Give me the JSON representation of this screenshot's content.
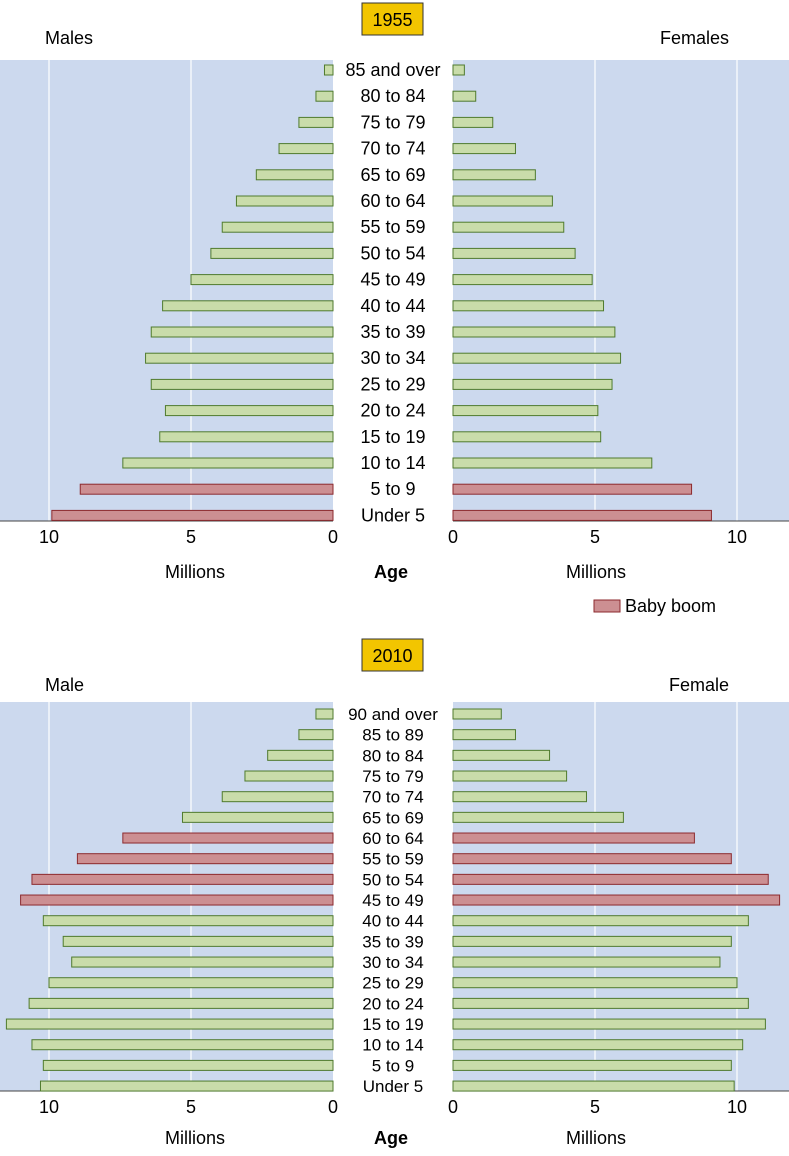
{
  "colors": {
    "panel_background": "#ccd9ee",
    "normal_bar": "#c9dcaa",
    "normal_bar_stroke": "#4f7a2e",
    "baby_boom_bar": "#cc8f92",
    "baby_boom_stroke": "#8c2a2e",
    "year_badge": "#f2c500",
    "gridline": "#ffffff"
  },
  "legend": {
    "label": "Baby boom"
  },
  "chart_data": [
    {
      "type": "bar",
      "title": "1955",
      "left_label": "Males",
      "right_label": "Females",
      "center_axis_label": "Age",
      "xlabel": "Millions",
      "xlim": [
        0,
        11.7
      ],
      "xticks": [
        0,
        5,
        10
      ],
      "grid": true,
      "categories": [
        "85 and over",
        "80 to 84",
        "75 to 79",
        "70 to 74",
        "65 to 69",
        "60 to 64",
        "55 to 59",
        "50 to 54",
        "45 to 49",
        "40 to 44",
        "35 to 39",
        "30 to 34",
        "25 to 29",
        "20 to 24",
        "15 to 19",
        "10 to 14",
        "5 to 9",
        "Under 5"
      ],
      "series": [
        {
          "name": "Males",
          "values": [
            0.3,
            0.6,
            1.2,
            1.9,
            2.7,
            3.4,
            3.9,
            4.3,
            5.0,
            6.0,
            6.4,
            6.6,
            6.4,
            5.9,
            6.1,
            7.4,
            8.9,
            9.9
          ]
        },
        {
          "name": "Females",
          "values": [
            0.4,
            0.8,
            1.4,
            2.2,
            2.9,
            3.5,
            3.9,
            4.3,
            4.9,
            5.3,
            5.7,
            5.9,
            5.6,
            5.1,
            5.2,
            7.0,
            8.4,
            9.1
          ]
        }
      ],
      "baby_boom": [
        false,
        false,
        false,
        false,
        false,
        false,
        false,
        false,
        false,
        false,
        false,
        false,
        false,
        false,
        false,
        false,
        true,
        true
      ]
    },
    {
      "type": "bar",
      "title": "2010",
      "left_label": "Male",
      "right_label": "Female",
      "center_axis_label": "Age",
      "xlabel": "Millions",
      "xlim": [
        0,
        11.7
      ],
      "xticks": [
        0,
        5,
        10
      ],
      "grid": true,
      "categories": [
        "90 and over",
        "85 to 89",
        "80 to 84",
        "75 to 79",
        "70 to 74",
        "65 to 69",
        "60 to 64",
        "55 to 59",
        "50 to 54",
        "45 to 49",
        "40 to 44",
        "35 to 39",
        "30 to 34",
        "25 to 29",
        "20 to 24",
        "15 to 19",
        "10 to 14",
        "5 to 9",
        "Under 5"
      ],
      "series": [
        {
          "name": "Male",
          "values": [
            0.6,
            1.2,
            2.3,
            3.1,
            3.9,
            5.3,
            7.4,
            9.0,
            10.6,
            11.0,
            10.2,
            9.5,
            9.2,
            10.0,
            10.7,
            11.5,
            10.6,
            10.2,
            10.3
          ]
        },
        {
          "name": "Female",
          "values": [
            1.7,
            2.2,
            3.4,
            4.0,
            4.7,
            6.0,
            8.5,
            9.8,
            11.1,
            11.5,
            10.4,
            9.8,
            9.4,
            10.0,
            10.4,
            11.0,
            10.2,
            9.8,
            9.9
          ]
        }
      ],
      "baby_boom": [
        false,
        false,
        false,
        false,
        false,
        false,
        true,
        true,
        true,
        true,
        false,
        false,
        false,
        false,
        false,
        false,
        false,
        false,
        false
      ]
    }
  ]
}
